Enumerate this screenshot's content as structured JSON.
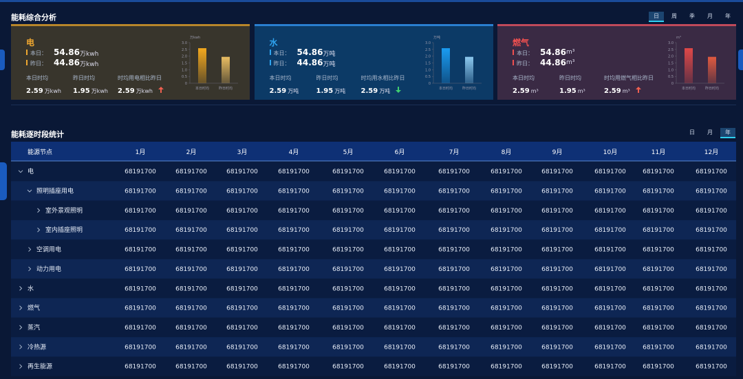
{
  "header": {
    "title": "能耗综合分析",
    "tabs": [
      "日",
      "周",
      "季",
      "月",
      "年"
    ],
    "active_tab": 0
  },
  "cards": [
    {
      "name": "电",
      "color": "#f0a830",
      "panel": "#38352c",
      "border": "#b8862a",
      "today_label": "本日：",
      "today": 54.86,
      "yesterday_label": "昨日：",
      "yesterday": 44.86,
      "unit": "万kwh",
      "stats": [
        {
          "label": "本日时均",
          "value": 2.59,
          "unit": "万kwh"
        },
        {
          "label": "昨日时均",
          "value": 1.95,
          "unit": "万kwh"
        },
        {
          "label": "时均用电相比昨日",
          "value": 2.59,
          "unit": "万kwh",
          "trend": "up"
        }
      ],
      "chart": {
        "unit": "万kwh",
        "categories": [
          "本日时均",
          "昨日时均"
        ],
        "bar_colors": [
          "#f3a91e",
          "#e9bd62"
        ]
      }
    },
    {
      "name": "水",
      "color": "#2fa4f0",
      "panel": "#0c3a66",
      "border": "#2a7fd0",
      "today_label": "本日：",
      "today": 54.86,
      "yesterday_label": "昨日：",
      "yesterday": 44.86,
      "unit": "万吨",
      "stats": [
        {
          "label": "本日时均",
          "value": 2.59,
          "unit": "万吨"
        },
        {
          "label": "昨日时均",
          "value": 1.95,
          "unit": "万吨"
        },
        {
          "label": "时均用水相比昨日",
          "value": 2.59,
          "unit": "万吨",
          "trend": "down"
        }
      ],
      "chart": {
        "unit": "万吨",
        "categories": [
          "本日时均",
          "昨日时均"
        ],
        "bar_colors": [
          "#1a9cf2",
          "#8cc8ee"
        ]
      }
    },
    {
      "name": "燃气",
      "color": "#f05050",
      "panel": "#3a2a44",
      "border": "#c04a5a",
      "today_label": "本日：",
      "today": 54.86,
      "yesterday_label": "昨日：",
      "yesterday": 44.86,
      "unit": "m³",
      "stats": [
        {
          "label": "本日时均",
          "value": 2.59,
          "unit": "m³"
        },
        {
          "label": "昨日时均",
          "value": 1.95,
          "unit": "m³"
        },
        {
          "label": "时均用燃气相比昨日",
          "value": 2.59,
          "unit": "m³",
          "trend": "up"
        }
      ],
      "chart": {
        "unit": "m³",
        "categories": [
          "本日时均",
          "昨日时均"
        ],
        "bar_colors": [
          "#e04848",
          "#e05a40"
        ]
      }
    }
  ],
  "mini_axis": {
    "ylim": [
      0,
      3
    ],
    "yticks": [
      0,
      0.5,
      {
        "value": 1,
        "label": "1.0"
      },
      1.5,
      {
        "value": 2,
        "label": "2.0"
      },
      2.5,
      {
        "value": 3,
        "label": "3.0"
      }
    ]
  },
  "table": {
    "title": "能耗逐时段统计",
    "tabs": [
      "日",
      "月",
      "年"
    ],
    "active_tab": 2,
    "columns": [
      "能源节点",
      "1月",
      "2月",
      "3月",
      "4月",
      "5月",
      "6月",
      "7月",
      "8月",
      "9月",
      "10月",
      "11月",
      "12月"
    ],
    "rows": [
      {
        "label": "电",
        "level": 0,
        "expanded": true,
        "values": [
          68191700,
          68191700,
          68191700,
          68191700,
          68191700,
          68191700,
          68191700,
          68191700,
          68191700,
          68191700,
          68191700,
          68191700
        ]
      },
      {
        "label": "照明插座用电",
        "level": 1,
        "expanded": true,
        "values": [
          68191700,
          68191700,
          68191700,
          68191700,
          68191700,
          68191700,
          68191700,
          68191700,
          68191700,
          68191700,
          68191700,
          68191700
        ]
      },
      {
        "label": "室外景观照明",
        "level": 2,
        "expanded": false,
        "values": [
          68191700,
          68191700,
          68191700,
          68191700,
          68191700,
          68191700,
          68191700,
          68191700,
          68191700,
          68191700,
          68191700,
          68191700
        ]
      },
      {
        "label": "室内插座照明",
        "level": 2,
        "expanded": false,
        "values": [
          68191700,
          68191700,
          68191700,
          68191700,
          68191700,
          68191700,
          68191700,
          68191700,
          68191700,
          68191700,
          68191700,
          68191700
        ]
      },
      {
        "label": "空调用电",
        "level": 1,
        "expanded": false,
        "values": [
          68191700,
          68191700,
          68191700,
          68191700,
          68191700,
          68191700,
          68191700,
          68191700,
          68191700,
          68191700,
          68191700,
          68191700
        ]
      },
      {
        "label": "动力用电",
        "level": 1,
        "expanded": false,
        "values": [
          68191700,
          68191700,
          68191700,
          68191700,
          68191700,
          68191700,
          68191700,
          68191700,
          68191700,
          68191700,
          68191700,
          68191700
        ]
      },
      {
        "label": "水",
        "level": 0,
        "expanded": false,
        "values": [
          68191700,
          68191700,
          68191700,
          68191700,
          68191700,
          68191700,
          68191700,
          68191700,
          68191700,
          68191700,
          68191700,
          68191700
        ]
      },
      {
        "label": "燃气",
        "level": 0,
        "expanded": false,
        "values": [
          68191700,
          68191700,
          68191700,
          68191700,
          68191700,
          68191700,
          68191700,
          68191700,
          68191700,
          68191700,
          68191700,
          68191700
        ]
      },
      {
        "label": "蒸汽",
        "level": 0,
        "expanded": false,
        "values": [
          68191700,
          68191700,
          68191700,
          68191700,
          68191700,
          68191700,
          68191700,
          68191700,
          68191700,
          68191700,
          68191700,
          68191700
        ]
      },
      {
        "label": "冷热源",
        "level": 0,
        "expanded": false,
        "values": [
          68191700,
          68191700,
          68191700,
          68191700,
          68191700,
          68191700,
          68191700,
          68191700,
          68191700,
          68191700,
          68191700,
          68191700
        ]
      },
      {
        "label": "再生能源",
        "level": 0,
        "expanded": false,
        "values": [
          68191700,
          68191700,
          68191700,
          68191700,
          68191700,
          68191700,
          68191700,
          68191700,
          68191700,
          68191700,
          68191700,
          68191700
        ]
      }
    ]
  }
}
